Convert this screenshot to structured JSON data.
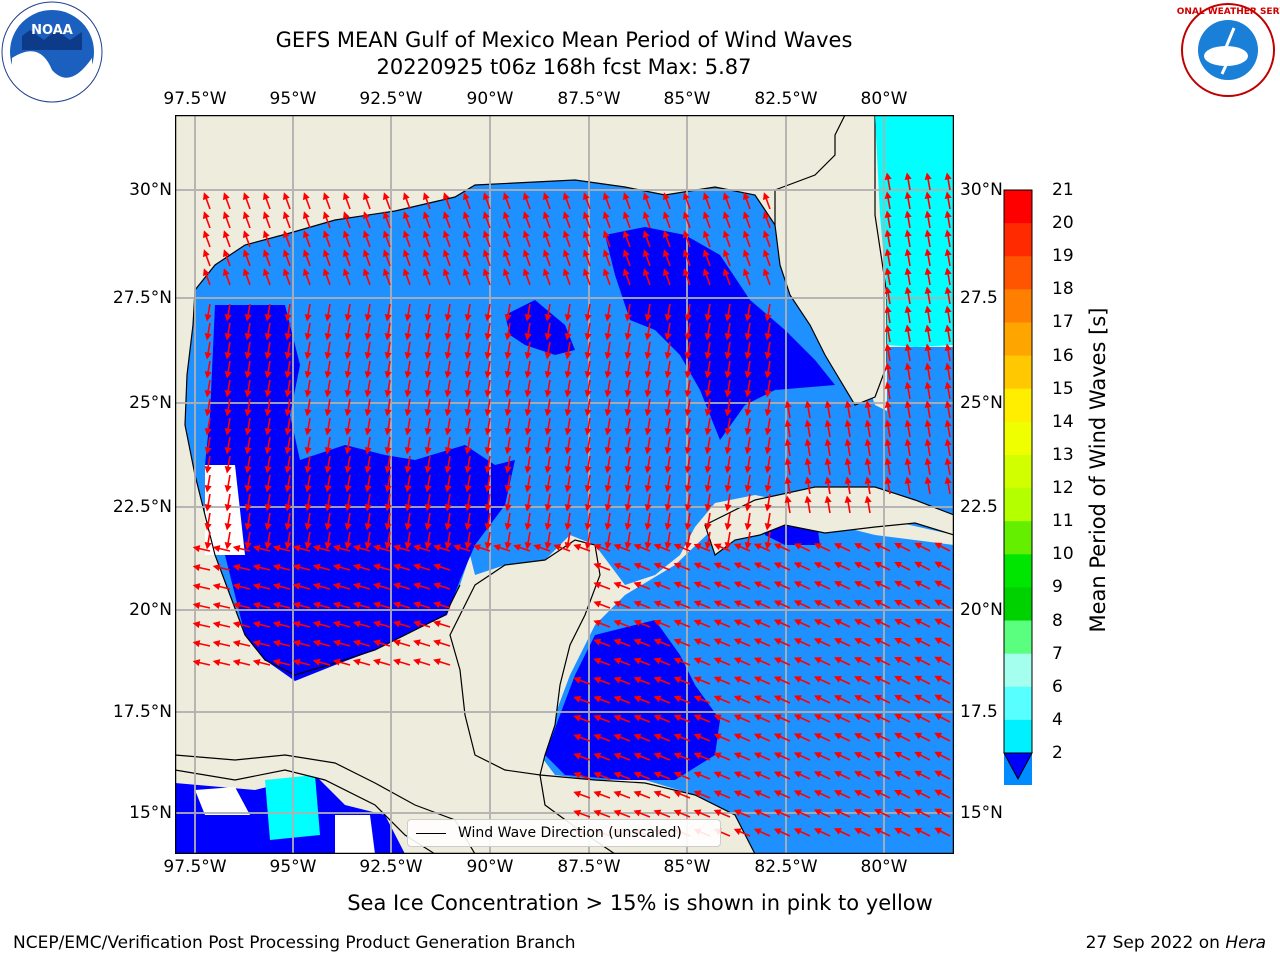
{
  "title": {
    "line1": "GEFS MEAN Gulf of Mexico Mean Period of Wind Waves",
    "line2": "20220925 t06z 168h fcst   Max: 5.87"
  },
  "axes": {
    "lon_ticks": [
      "97.5°W",
      "95°W",
      "92.5°W",
      "90°W",
      "87.5°W",
      "85°W",
      "82.5°W",
      "80°W"
    ],
    "lat_ticks_left": [
      "30°N",
      "27.5°N",
      "25°N",
      "22.5°N",
      "20°N",
      "17.5°N",
      "15°N"
    ],
    "lat_ticks_right": [
      "30°N",
      "27.5",
      "25°N",
      "22.5",
      "20°N",
      "17.5",
      "15°N"
    ]
  },
  "legend": {
    "label": "Wind Wave Direction (unscaled)"
  },
  "colorbar": {
    "label": "Mean Period of Wind Waves [s]",
    "ticks": [
      "21",
      "20",
      "19",
      "18",
      "17",
      "16",
      "15",
      "14",
      "13",
      "12",
      "11",
      "10",
      "9",
      "8",
      "7",
      "6",
      "4",
      "2"
    ],
    "colors": [
      "#ff0000",
      "#ff2a00",
      "#ff5500",
      "#ff7f00",
      "#ffa500",
      "#ffc800",
      "#ffee00",
      "#f0ff00",
      "#d2ff00",
      "#b4ff00",
      "#64ef00",
      "#00e600",
      "#00d200",
      "#5aff7f",
      "#a5ffee",
      "#57ffff",
      "#00f0ff",
      "#008cff",
      "#0000ff"
    ]
  },
  "map_colors": {
    "land": "#eeecdc",
    "dark_blue": "#0000ff",
    "medium_blue": "#1e90ff",
    "cyan": "#00ffff",
    "arrows": "#ff0000"
  },
  "footer": {
    "center": "Sea Ice Concentration > 15% is shown in pink to yellow",
    "left": "NCEP/EMC/Verification Post Processing Product Generation Branch",
    "date": "27 Sep 2022 on",
    "host": "Hera"
  },
  "logos": {
    "noara_text": "NOAA",
    "nws_text": "NATIONAL WEATHER SERVICE"
  }
}
